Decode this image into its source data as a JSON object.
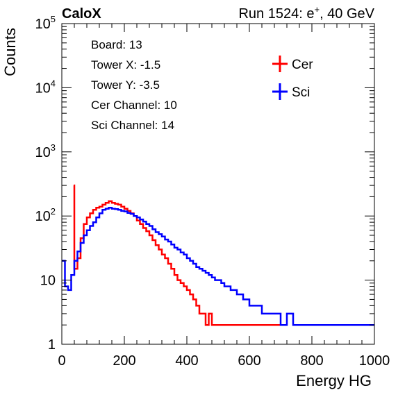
{
  "header": {
    "logo": "CaloX",
    "run_info": "Run 1524: e",
    "run_info_sup": "+",
    "run_info_tail": ", 40 GeV"
  },
  "info_box": {
    "lines": [
      "Board: 13",
      "Tower X: -1.5",
      "Tower Y: -3.5",
      "Cer Channel: 10",
      "Sci Channel: 14"
    ]
  },
  "colors": {
    "cer": "#ff0000",
    "sci": "#0000ff",
    "axis": "#000000"
  },
  "chart_data": {
    "type": "histogram",
    "xlabel": "Energy HG",
    "ylabel": "Counts",
    "xlim": [
      0,
      1000
    ],
    "ylim": [
      1,
      100000
    ],
    "y_scale": "log",
    "x_ticks": [
      {
        "value": 0,
        "label": "0"
      },
      {
        "value": 200,
        "label": "200"
      },
      {
        "value": 400,
        "label": "400"
      },
      {
        "value": 600,
        "label": "600"
      },
      {
        "value": 800,
        "label": "800"
      },
      {
        "value": 1000,
        "label": "1000"
      }
    ],
    "y_ticks": [
      {
        "value": 1,
        "base": "1",
        "exp": ""
      },
      {
        "value": 10,
        "base": "10",
        "exp": ""
      },
      {
        "value": 100,
        "base": "10",
        "exp": "2"
      },
      {
        "value": 1000,
        "base": "10",
        "exp": "3"
      },
      {
        "value": 10000,
        "base": "10",
        "exp": "4"
      },
      {
        "value": 100000,
        "base": "10",
        "exp": "5"
      }
    ],
    "legend_position": "top-right",
    "series": [
      {
        "name": "Cer",
        "color": "#ff0000",
        "points": [
          [
            38,
            300
          ],
          [
            40,
            15
          ],
          [
            50,
            22
          ],
          [
            60,
            45
          ],
          [
            70,
            75
          ],
          [
            80,
            95
          ],
          [
            90,
            110
          ],
          [
            100,
            125
          ],
          [
            110,
            135
          ],
          [
            120,
            140
          ],
          [
            130,
            150
          ],
          [
            140,
            160
          ],
          [
            150,
            170
          ],
          [
            160,
            160
          ],
          [
            170,
            155
          ],
          [
            180,
            150
          ],
          [
            190,
            140
          ],
          [
            200,
            130
          ],
          [
            210,
            120
          ],
          [
            220,
            110
          ],
          [
            230,
            100
          ],
          [
            240,
            85
          ],
          [
            250,
            75
          ],
          [
            260,
            65
          ],
          [
            270,
            58
          ],
          [
            280,
            50
          ],
          [
            290,
            42
          ],
          [
            300,
            35
          ],
          [
            310,
            30
          ],
          [
            320,
            25
          ],
          [
            330,
            22
          ],
          [
            340,
            18
          ],
          [
            350,
            15
          ],
          [
            360,
            12
          ],
          [
            370,
            10
          ],
          [
            380,
            9
          ],
          [
            390,
            8
          ],
          [
            400,
            7
          ],
          [
            410,
            6
          ],
          [
            420,
            5
          ],
          [
            430,
            4
          ],
          [
            440,
            3
          ],
          [
            450,
            3
          ],
          [
            460,
            2
          ],
          [
            470,
            3
          ],
          [
            480,
            2
          ],
          [
            500,
            2
          ],
          [
            520,
            2
          ],
          [
            550,
            2
          ],
          [
            580,
            2
          ],
          [
            610,
            2
          ],
          [
            650,
            2
          ],
          [
            700,
            2
          ]
        ]
      },
      {
        "name": "Sci",
        "color": "#0000ff",
        "points": [
          [
            0,
            20
          ],
          [
            10,
            8
          ],
          [
            20,
            7
          ],
          [
            30,
            12
          ],
          [
            40,
            20
          ],
          [
            50,
            28
          ],
          [
            60,
            38
          ],
          [
            70,
            50
          ],
          [
            80,
            60
          ],
          [
            90,
            70
          ],
          [
            100,
            80
          ],
          [
            110,
            95
          ],
          [
            120,
            110
          ],
          [
            130,
            125
          ],
          [
            140,
            130
          ],
          [
            150,
            135
          ],
          [
            160,
            130
          ],
          [
            170,
            128
          ],
          [
            180,
            125
          ],
          [
            190,
            120
          ],
          [
            200,
            118
          ],
          [
            210,
            112
          ],
          [
            220,
            108
          ],
          [
            230,
            100
          ],
          [
            240,
            95
          ],
          [
            250,
            88
          ],
          [
            260,
            82
          ],
          [
            270,
            75
          ],
          [
            280,
            70
          ],
          [
            290,
            62
          ],
          [
            300,
            56
          ],
          [
            310,
            52
          ],
          [
            320,
            48
          ],
          [
            330,
            43
          ],
          [
            340,
            40
          ],
          [
            350,
            36
          ],
          [
            360,
            32
          ],
          [
            370,
            30
          ],
          [
            380,
            27
          ],
          [
            390,
            25
          ],
          [
            400,
            22
          ],
          [
            410,
            20
          ],
          [
            420,
            18
          ],
          [
            430,
            16
          ],
          [
            440,
            15
          ],
          [
            450,
            14
          ],
          [
            460,
            13
          ],
          [
            470,
            12
          ],
          [
            480,
            11
          ],
          [
            490,
            10
          ],
          [
            500,
            10
          ],
          [
            510,
            9
          ],
          [
            520,
            8
          ],
          [
            530,
            8
          ],
          [
            540,
            7
          ],
          [
            550,
            7
          ],
          [
            560,
            6
          ],
          [
            570,
            6
          ],
          [
            580,
            5
          ],
          [
            590,
            5
          ],
          [
            600,
            4
          ],
          [
            620,
            4
          ],
          [
            640,
            3
          ],
          [
            660,
            3
          ],
          [
            680,
            3
          ],
          [
            700,
            2
          ],
          [
            720,
            3
          ],
          [
            740,
            2
          ],
          [
            760,
            2
          ],
          [
            780,
            2
          ],
          [
            800,
            2
          ],
          [
            820,
            2
          ],
          [
            850,
            2
          ],
          [
            880,
            2
          ],
          [
            910,
            2
          ],
          [
            940,
            2
          ],
          [
            980,
            2
          ],
          [
            1000,
            2
          ]
        ]
      }
    ]
  }
}
